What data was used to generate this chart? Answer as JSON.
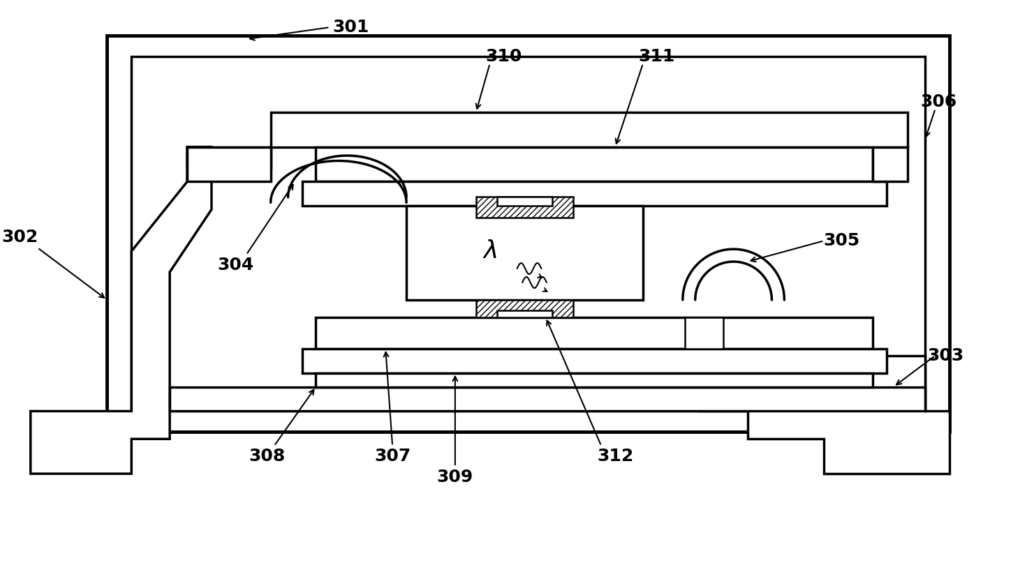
{
  "bg_color": "#ffffff",
  "lc": "#000000",
  "fig_width": 14.71,
  "fig_height": 8.1,
  "lw_thick": 3.5,
  "lw_med": 2.5,
  "lw_thin": 1.8
}
